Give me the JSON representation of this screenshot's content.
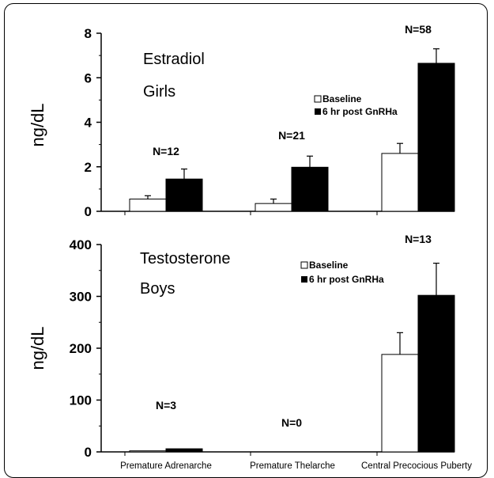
{
  "colors": {
    "baseline": "#ffffff",
    "post": "#000000",
    "axis": "#000000"
  },
  "legend": {
    "baseline": "Baseline",
    "post": "6 hr post GnRHa"
  },
  "categories": [
    "Premature Adrenarche",
    "Premature Thelarche",
    "Central Precocious Puberty"
  ],
  "chart_data": [
    {
      "type": "bar",
      "title": "",
      "annotations": [
        "Estradiol",
        "Girls"
      ],
      "ylabel": "ng/dL",
      "xlabel": "",
      "ylim": [
        0,
        8
      ],
      "yticks": [
        "0",
        "2",
        "4",
        "6",
        "8"
      ],
      "categories": [
        "Premature Adrenarche",
        "Premature Thelarche",
        "Central Precocious Puberty"
      ],
      "series": [
        {
          "name": "Baseline",
          "values": [
            0.55,
            0.35,
            2.6
          ],
          "errors": [
            0.15,
            0.2,
            0.45
          ]
        },
        {
          "name": "6 hr post GnRHa",
          "values": [
            1.45,
            1.98,
            6.65
          ],
          "errors": [
            0.45,
            0.5,
            0.65
          ]
        }
      ],
      "n_labels": [
        "N=12",
        "N=21",
        "N=58"
      ],
      "legend_position": "right"
    },
    {
      "type": "bar",
      "title": "",
      "annotations": [
        "Testosterone",
        "Boys"
      ],
      "ylabel": "ng/dL",
      "xlabel": "",
      "ylim": [
        0,
        400
      ],
      "yticks": [
        "0",
        "100",
        "200",
        "300",
        "400"
      ],
      "categories": [
        "Premature Adrenarche",
        "Premature Thelarche",
        "Central Precocious Puberty"
      ],
      "series": [
        {
          "name": "Baseline",
          "values": [
            2,
            null,
            188
          ],
          "errors": [
            0,
            null,
            42
          ]
        },
        {
          "name": "6 hr post GnRHa",
          "values": [
            6,
            null,
            302
          ],
          "errors": [
            0,
            null,
            62
          ]
        }
      ],
      "n_labels": [
        "N=3",
        "N=0",
        "N=13"
      ],
      "legend_position": "right"
    }
  ]
}
